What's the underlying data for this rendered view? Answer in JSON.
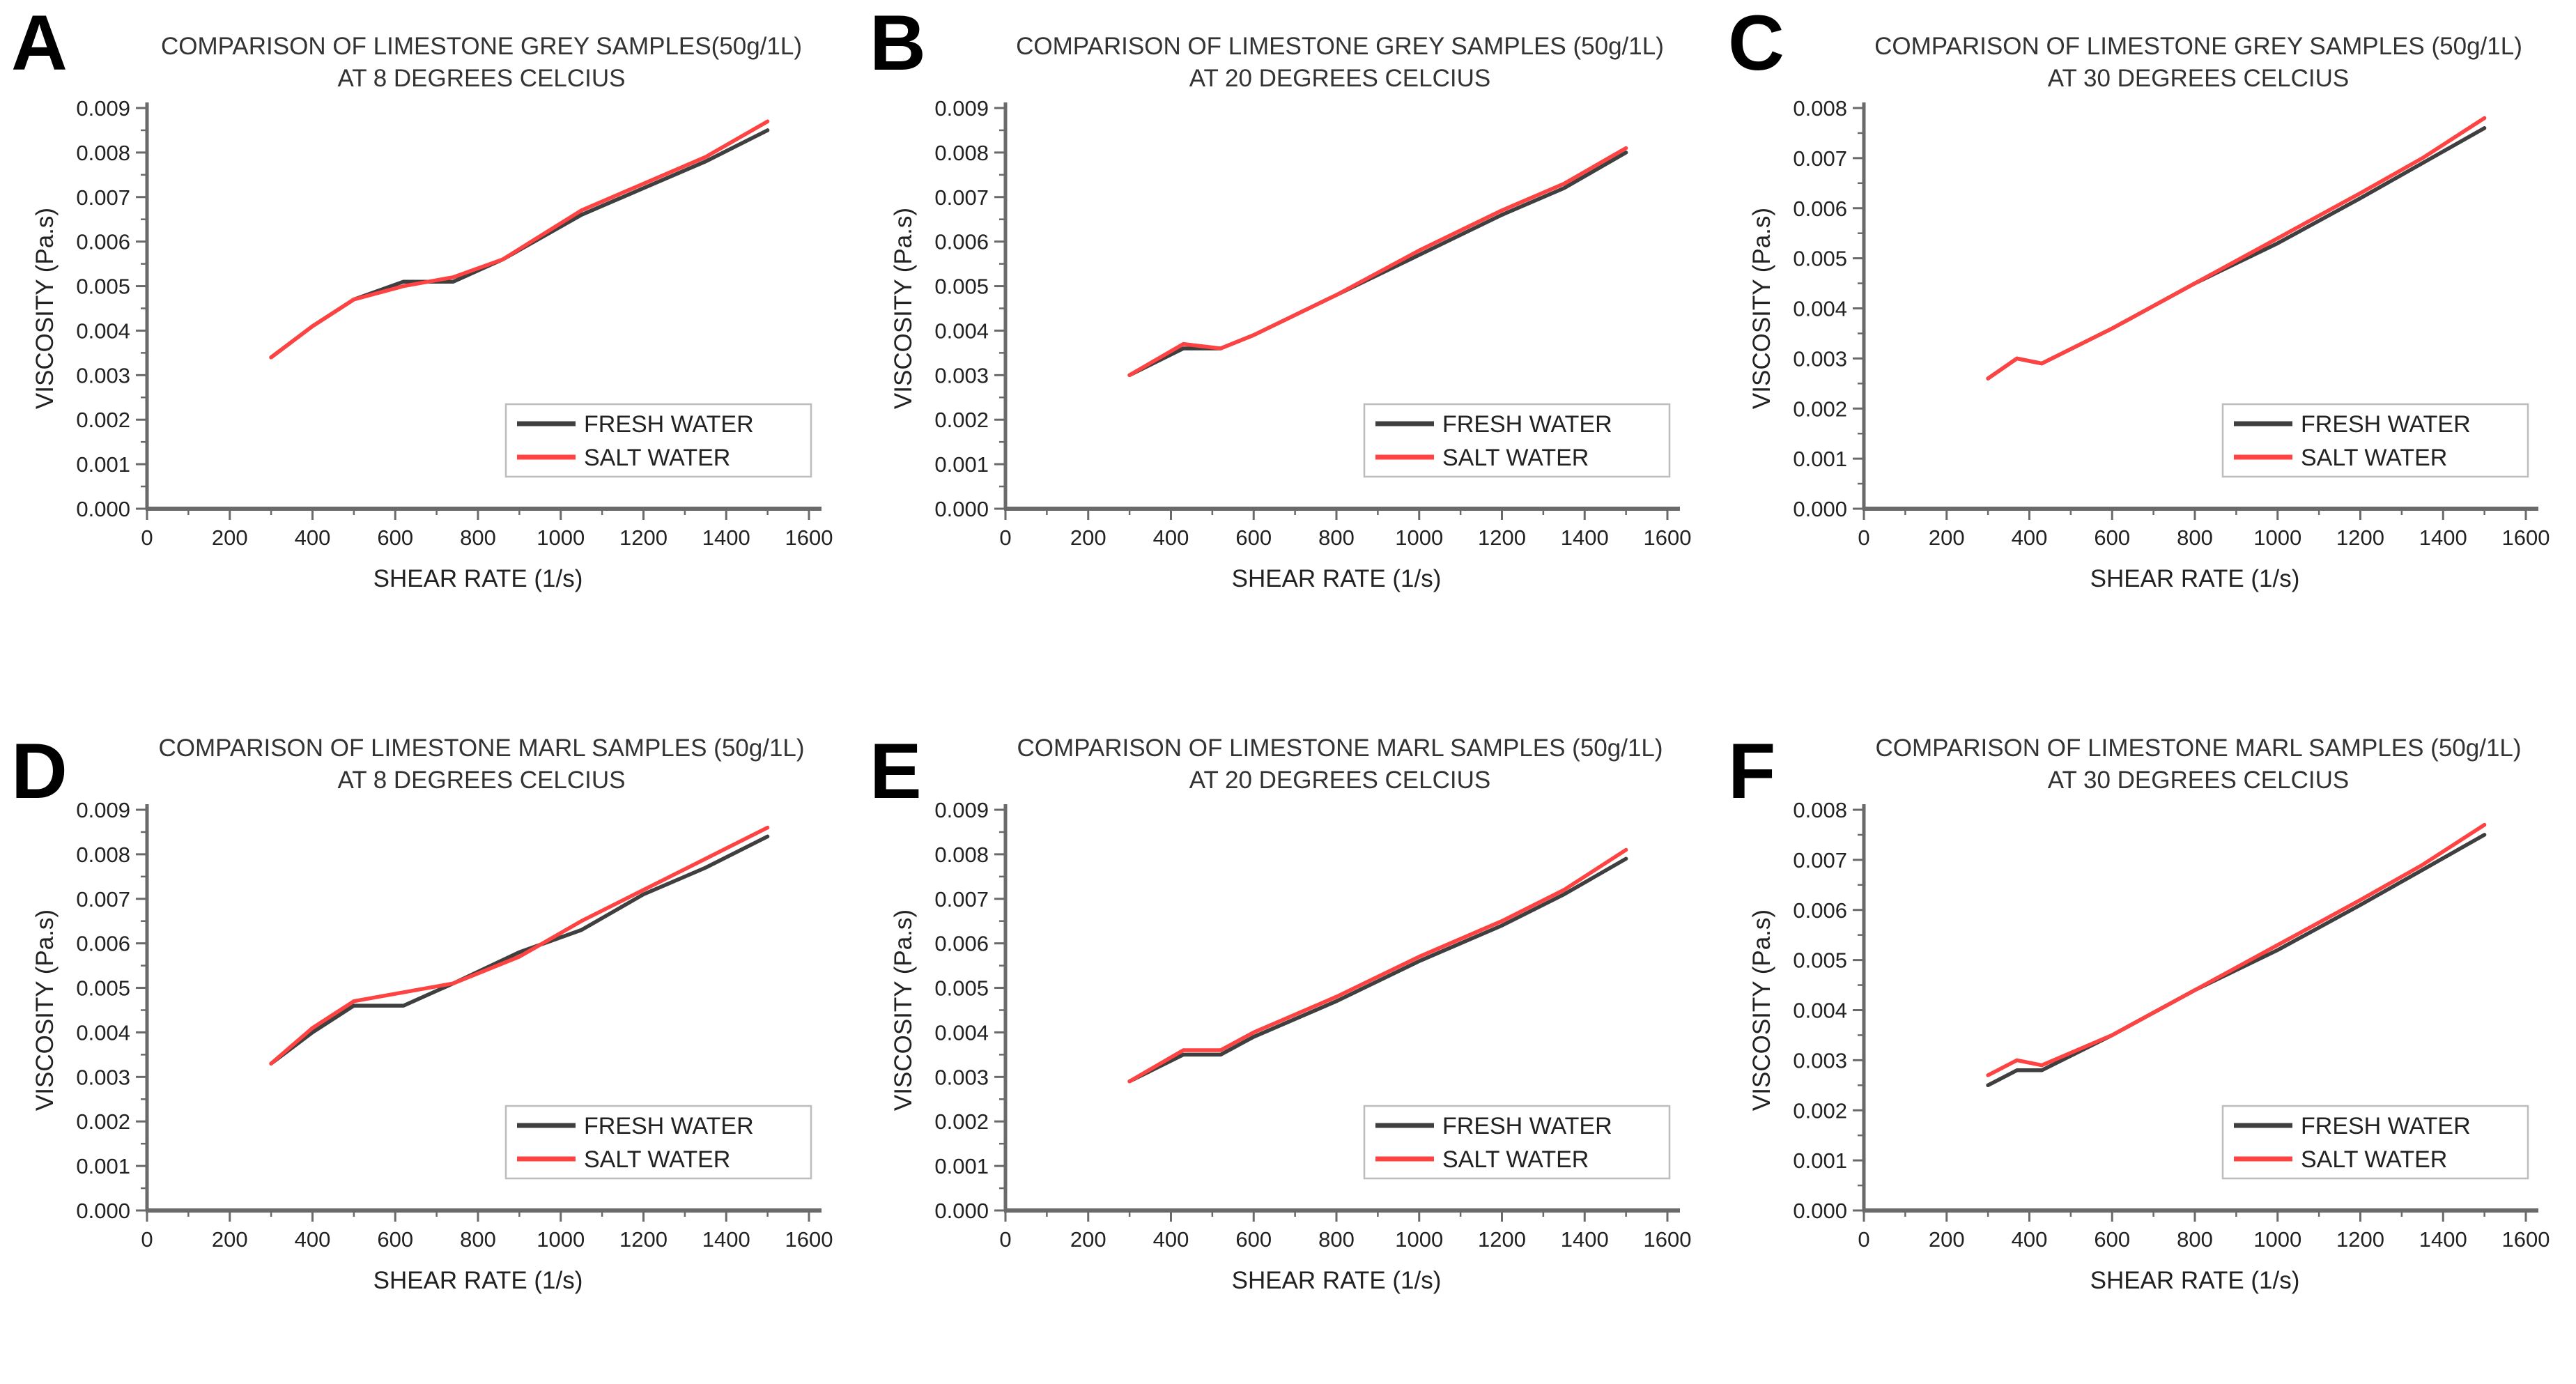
{
  "figure": {
    "xlabel": "SHEAR RATE (1/s)",
    "ylabel": "VISCOSITY (Pa.s)",
    "colors": {
      "fresh": "#3f3f3f",
      "salt": "#ff4242",
      "axis": "#6a6a6a",
      "legend_border": "#bdbdbd"
    },
    "legend": {
      "entries": [
        "FRESH WATER",
        "SALT WATER"
      ],
      "position": "lower right"
    }
  },
  "chart_data": [
    {
      "panel": "A",
      "type": "line",
      "title_line1": "COMPARISON OF LIMESTONE GREY SAMPLES(50g/1L)",
      "title_line2": "AT 8 DEGREES CELCIUS",
      "xlabel": "SHEAR RATE (1/s)",
      "ylabel": "VISCOSITY (Pa.s)",
      "xlim": [
        0,
        1600
      ],
      "xtick_step": 200,
      "ylim": [
        0,
        0.009
      ],
      "ytick_step": 0.001,
      "grid": false,
      "legend_position": "lower right",
      "x": [
        300,
        400,
        500,
        620,
        740,
        860,
        1050,
        1200,
        1350,
        1500
      ],
      "series": [
        {
          "name": "FRESH WATER",
          "color": "#3f3f3f",
          "values": [
            0.0034,
            0.0041,
            0.0047,
            0.0051,
            0.0051,
            0.0056,
            0.0066,
            0.0072,
            0.0078,
            0.0085
          ]
        },
        {
          "name": "SALT WATER",
          "color": "#ff4242",
          "values": [
            0.0034,
            0.0041,
            0.0047,
            0.005,
            0.0052,
            0.0056,
            0.0067,
            0.0073,
            0.0079,
            0.0087
          ]
        }
      ]
    },
    {
      "panel": "B",
      "type": "line",
      "title_line1": "COMPARISON OF LIMESTONE GREY SAMPLES (50g/1L)",
      "title_line2": "AT 20 DEGREES CELCIUS",
      "xlabel": "SHEAR RATE (1/s)",
      "ylabel": "VISCOSITY (Pa.s)",
      "xlim": [
        0,
        1600
      ],
      "xtick_step": 200,
      "ylim": [
        0,
        0.009
      ],
      "ytick_step": 0.001,
      "grid": false,
      "legend_position": "lower right",
      "x": [
        300,
        430,
        520,
        600,
        800,
        1000,
        1200,
        1350,
        1500
      ],
      "series": [
        {
          "name": "FRESH WATER",
          "color": "#3f3f3f",
          "values": [
            0.003,
            0.0036,
            0.0036,
            0.0039,
            0.0048,
            0.0057,
            0.0066,
            0.0072,
            0.008
          ]
        },
        {
          "name": "SALT WATER",
          "color": "#ff4242",
          "values": [
            0.003,
            0.0037,
            0.0036,
            0.0039,
            0.0048,
            0.0058,
            0.0067,
            0.0073,
            0.0081
          ]
        }
      ]
    },
    {
      "panel": "C",
      "type": "line",
      "title_line1": "COMPARISON OF LIMESTONE GREY SAMPLES (50g/1L)",
      "title_line2": "AT 30 DEGREES CELCIUS",
      "xlabel": "SHEAR RATE (1/s)",
      "ylabel": "VISCOSITY (Pa.s)",
      "xlim": [
        0,
        1600
      ],
      "xtick_step": 200,
      "ylim": [
        0,
        0.008
      ],
      "ytick_step": 0.001,
      "grid": false,
      "legend_position": "lower right",
      "x": [
        300,
        370,
        430,
        600,
        800,
        1000,
        1200,
        1350,
        1500
      ],
      "series": [
        {
          "name": "FRESH WATER",
          "color": "#3f3f3f",
          "values": [
            0.0026,
            0.003,
            0.0029,
            0.0036,
            0.0045,
            0.0053,
            0.0062,
            0.0069,
            0.0076
          ]
        },
        {
          "name": "SALT WATER",
          "color": "#ff4242",
          "values": [
            0.0026,
            0.003,
            0.0029,
            0.0036,
            0.0045,
            0.0054,
            0.0063,
            0.007,
            0.0078
          ]
        }
      ]
    },
    {
      "panel": "D",
      "type": "line",
      "title_line1": "COMPARISON OF LIMESTONE MARL SAMPLES (50g/1L)",
      "title_line2": "AT 8 DEGREES CELCIUS",
      "xlabel": "SHEAR RATE (1/s)",
      "ylabel": "VISCOSITY (Pa.s)",
      "xlim": [
        0,
        1600
      ],
      "xtick_step": 200,
      "ylim": [
        0,
        0.009
      ],
      "ytick_step": 0.001,
      "grid": false,
      "legend_position": "lower right",
      "x": [
        300,
        400,
        500,
        620,
        740,
        900,
        1050,
        1200,
        1350,
        1500
      ],
      "series": [
        {
          "name": "FRESH WATER",
          "color": "#3f3f3f",
          "values": [
            0.0033,
            0.004,
            0.0046,
            0.0046,
            0.0051,
            0.0058,
            0.0063,
            0.0071,
            0.0077,
            0.0084
          ]
        },
        {
          "name": "SALT WATER",
          "color": "#ff4242",
          "values": [
            0.0033,
            0.0041,
            0.0047,
            0.0049,
            0.0051,
            0.0057,
            0.0065,
            0.0072,
            0.0079,
            0.0086
          ]
        }
      ]
    },
    {
      "panel": "E",
      "type": "line",
      "title_line1": "COMPARISON OF LIMESTONE MARL SAMPLES (50g/1L)",
      "title_line2": "AT 20 DEGREES CELCIUS",
      "xlabel": "SHEAR RATE (1/s)",
      "ylabel": "VISCOSITY (Pa.s)",
      "xlim": [
        0,
        1600
      ],
      "xtick_step": 200,
      "ylim": [
        0,
        0.009
      ],
      "ytick_step": 0.001,
      "grid": false,
      "legend_position": "lower right",
      "x": [
        300,
        430,
        520,
        600,
        800,
        1000,
        1200,
        1350,
        1500
      ],
      "series": [
        {
          "name": "FRESH WATER",
          "color": "#3f3f3f",
          "values": [
            0.0029,
            0.0035,
            0.0035,
            0.0039,
            0.0047,
            0.0056,
            0.0064,
            0.0071,
            0.0079
          ]
        },
        {
          "name": "SALT WATER",
          "color": "#ff4242",
          "values": [
            0.0029,
            0.0036,
            0.0036,
            0.004,
            0.0048,
            0.0057,
            0.0065,
            0.0072,
            0.0081
          ]
        }
      ]
    },
    {
      "panel": "F",
      "type": "line",
      "title_line1": "COMPARISON OF LIMESTONE MARL SAMPLES (50g/1L)",
      "title_line2": "AT 30 DEGREES CELCIUS",
      "xlabel": "SHEAR RATE (1/s)",
      "ylabel": "VISCOSITY (Pa.s)",
      "xlim": [
        0,
        1600
      ],
      "xtick_step": 200,
      "ylim": [
        0,
        0.008
      ],
      "ytick_step": 0.001,
      "grid": false,
      "legend_position": "lower right",
      "x": [
        300,
        370,
        430,
        600,
        800,
        1000,
        1200,
        1350,
        1500
      ],
      "series": [
        {
          "name": "FRESH WATER",
          "color": "#3f3f3f",
          "values": [
            0.0025,
            0.0028,
            0.0028,
            0.0035,
            0.0044,
            0.0052,
            0.0061,
            0.0068,
            0.0075
          ]
        },
        {
          "name": "SALT WATER",
          "color": "#ff4242",
          "values": [
            0.0027,
            0.003,
            0.0029,
            0.0035,
            0.0044,
            0.0053,
            0.0062,
            0.0069,
            0.0077
          ]
        }
      ]
    }
  ]
}
